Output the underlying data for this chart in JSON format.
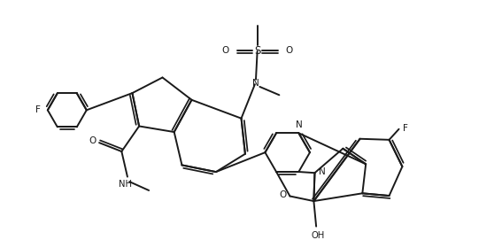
{
  "bg_color": "#ffffff",
  "line_color": "#1a1a1a",
  "lw": 1.4,
  "figsize": [
    5.67,
    2.71
  ],
  "dpi": 100,
  "xlim": [
    0,
    10
  ],
  "ylim": [
    0,
    4.8
  ]
}
